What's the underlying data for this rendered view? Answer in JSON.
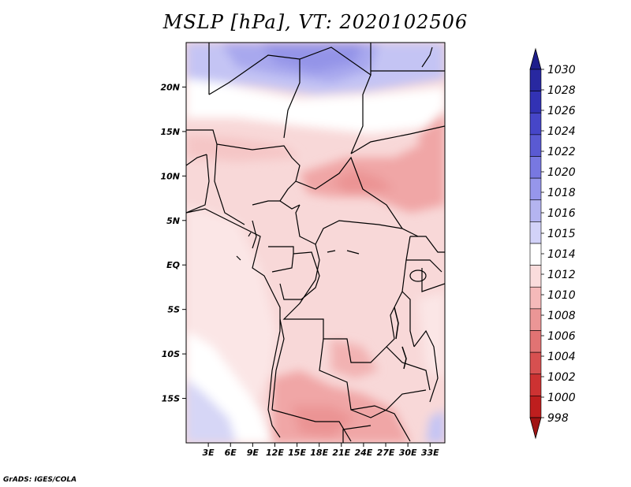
{
  "title": "MSLP [hPa], VT: 2020102506",
  "credit": "GrADS: IGES/COLA",
  "map": {
    "lon_range": [
      0,
      35
    ],
    "lat_range": [
      -20,
      25
    ],
    "lat_labels": [
      "20N",
      "15N",
      "10N",
      "5N",
      "EQ",
      "5S",
      "10S",
      "15S"
    ],
    "lat_values": [
      20,
      15,
      10,
      5,
      0,
      -5,
      -10,
      -15
    ],
    "lon_labels": [
      "3E",
      "6E",
      "9E",
      "12E",
      "15E",
      "18E",
      "21E",
      "24E",
      "27E",
      "30E",
      "33E"
    ],
    "lon_values": [
      3,
      6,
      9,
      12,
      15,
      18,
      21,
      24,
      27,
      30,
      33
    ]
  },
  "colorbar": {
    "levels": [
      "1030",
      "1028",
      "1026",
      "1024",
      "1022",
      "1020",
      "1018",
      "1016",
      "1015",
      "1014",
      "1012",
      "1010",
      "1008",
      "1006",
      "1004",
      "1002",
      "1000",
      "998"
    ],
    "colors": [
      "#1e1e8c",
      "#2828a0",
      "#3232b4",
      "#4646c8",
      "#5a5ad2",
      "#7878e1",
      "#9696eb",
      "#b4b4f0",
      "#d2d2f8",
      "#ffffff",
      "#fadcdc",
      "#f5b9b9",
      "#eb9696",
      "#e17373",
      "#d75050",
      "#cd3232",
      "#be1e1e",
      "#a01414"
    ]
  }
}
